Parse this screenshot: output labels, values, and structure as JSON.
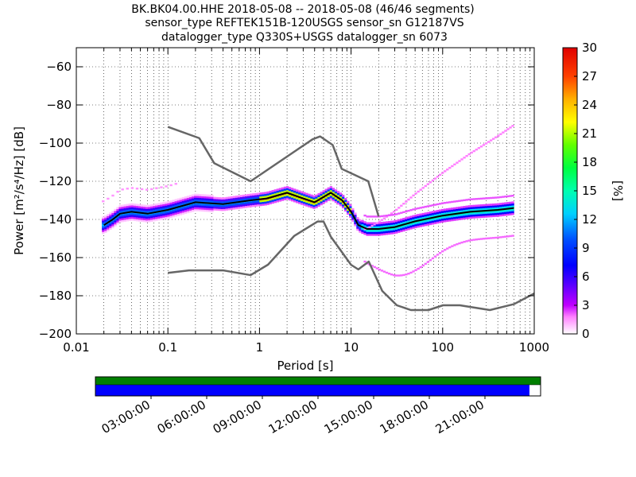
{
  "chart_data": {
    "type": "heatmap",
    "title_lines": [
      "BK.BK04.00.HHE   2018-05-08 -- 2018-05-08  (46/46 segments)",
      "sensor_type REFTEK151B-120USGS sensor_sn G12187VS",
      "datalogger_type Q330S+USGS datalogger_sn 6073"
    ],
    "xlabel": "Period [s]",
    "ylabel": "Power [m²/s⁴/Hz] [dB]",
    "x_scale": "log",
    "xlim": [
      0.01,
      1000
    ],
    "ylim": [
      -200,
      -50
    ],
    "x_ticks": [
      0.01,
      0.1,
      1,
      10,
      100,
      1000
    ],
    "x_tick_labels": [
      "0.01",
      "0.1",
      "1",
      "10",
      "100",
      "1000"
    ],
    "y_ticks": [
      -60,
      -80,
      -100,
      -120,
      -140,
      -160,
      -180,
      -200
    ],
    "y_tick_labels": [
      "−60",
      "−80",
      "−100",
      "−120",
      "−140",
      "−160",
      "−180",
      "−200"
    ],
    "grid": "dotted",
    "colorbar": {
      "label": "[%]",
      "range": [
        0,
        30
      ],
      "ticks": [
        0,
        3,
        6,
        9,
        12,
        15,
        18,
        21,
        24,
        27,
        30
      ],
      "tick_labels": [
        "0",
        "3",
        "6",
        "9",
        "12",
        "15",
        "18",
        "21",
        "24",
        "27",
        "30"
      ]
    },
    "nhnm": {
      "x": [
        0.1,
        0.22,
        0.32,
        0.8,
        3.8,
        4.6,
        6.3,
        7.9,
        15.4,
        20
      ],
      "y": [
        -91.5,
        -97.4,
        -110.5,
        -120,
        -98,
        -96.5,
        -101,
        -113.5,
        -120,
        -138.5
      ]
    },
    "nlnm": {
      "x": [
        0.1,
        0.17,
        0.4,
        0.8,
        1.24,
        2.4,
        4.3,
        5,
        6,
        10,
        12,
        15.6,
        21.9,
        31.6,
        45,
        70,
        101,
        154,
        328,
        600,
        1000
      ],
      "y": [
        -168,
        -166.7,
        -166.7,
        -169.2,
        -163.7,
        -148.6,
        -141.1,
        -141.1,
        -149,
        -163.8,
        -166.2,
        -162.1,
        -177.5,
        -185,
        -187.5,
        -187.5,
        -185,
        -185,
        -187.5,
        -184.4,
        -178.8
      ]
    },
    "mean_psd": {
      "x": [
        0.02,
        0.025,
        0.03,
        0.04,
        0.06,
        0.1,
        0.2,
        0.4,
        0.8,
        1.2,
        2,
        3,
        4,
        6,
        8,
        10,
        12,
        15,
        20,
        30,
        50,
        100,
        200,
        400,
        600
      ],
      "y": [
        -143,
        -140,
        -137,
        -136,
        -137,
        -135,
        -131,
        -132,
        -130,
        -129,
        -126,
        -129,
        -131,
        -126,
        -130,
        -136,
        -143,
        -145,
        -145,
        -144,
        -141,
        -138,
        -136,
        -135,
        -134
      ]
    },
    "time_axis": {
      "labels": [
        "03:00:00",
        "06:00:00",
        "09:00:00",
        "12:00:00",
        "15:00:00",
        "18:00:00",
        "21:00:00"
      ],
      "coverage": 0.975
    }
  }
}
